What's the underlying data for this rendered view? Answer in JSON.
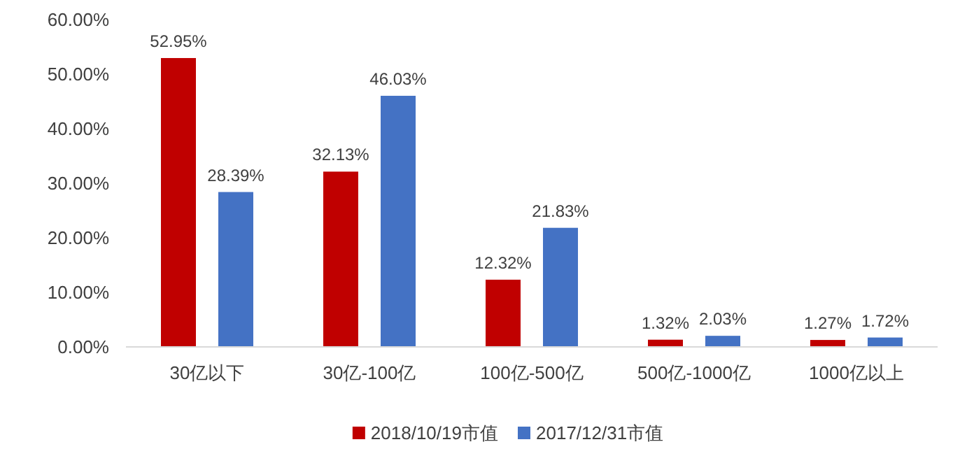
{
  "chart_data": {
    "type": "bar",
    "categories": [
      "30亿以下",
      "30亿-100亿",
      "100亿-500亿",
      "500亿-1000亿",
      "1000亿以上"
    ],
    "ylim": [
      0,
      60
    ],
    "yticks": [
      {
        "value": 0,
        "label": "0.00%"
      },
      {
        "value": 10,
        "label": "10.00%"
      },
      {
        "value": 20,
        "label": "20.00%"
      },
      {
        "value": 30,
        "label": "30.00%"
      },
      {
        "value": 40,
        "label": "40.00%"
      },
      {
        "value": 50,
        "label": "50.00%"
      },
      {
        "value": 60,
        "label": "60.00%"
      }
    ],
    "legend": "bottom",
    "series": [
      {
        "name": "2018/10/19市值",
        "color": "#c00000",
        "values": [
          52.95,
          32.13,
          12.32,
          1.32,
          1.27
        ],
        "value_labels": [
          "52.95%",
          "32.13%",
          "12.32%",
          "1.32%",
          "1.27%"
        ]
      },
      {
        "name": "2017/12/31市值",
        "color": "#4472c4",
        "values": [
          28.39,
          46.03,
          21.83,
          2.03,
          1.72
        ],
        "value_labels": [
          "28.39%",
          "46.03%",
          "21.83%",
          "2.03%",
          "1.72%"
        ]
      }
    ]
  }
}
